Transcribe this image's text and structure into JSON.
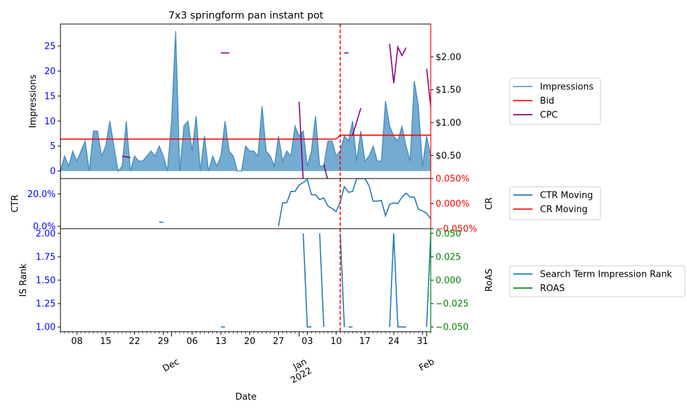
{
  "chart_data": {
    "type": "line",
    "title": "7x3 springform pan instant pot",
    "xlabel": "Date",
    "x_range": [
      "2021-11-04",
      "2022-02-02"
    ],
    "x_minor_ticks": [
      "08",
      "15",
      "22",
      "29",
      "06",
      "13",
      "20",
      "27",
      "03",
      "10",
      "17",
      "24",
      "31"
    ],
    "x_month_labels": [
      "Dec",
      "Jan\n2022",
      "Feb"
    ],
    "event_marker_date": "2022-01-11",
    "panels": [
      {
        "name": "impressions-panel",
        "ylabel": "Impressions",
        "ylim": [
          -1.5,
          29.4
        ],
        "yticks": [
          "0",
          "5",
          "10",
          "15",
          "20",
          "25"
        ],
        "y2lim": [
          0.15,
          2.5
        ],
        "y2ticks": [
          "$0.50",
          "$1.00",
          "$1.50",
          "$2.00"
        ],
        "series": [
          {
            "name": "Impressions",
            "color": "#1f77b4",
            "fill": true,
            "values": [
              0,
              3,
              1,
              4,
              2,
              4,
              6,
              0,
              8,
              8,
              3,
              5,
              10,
              5,
              0,
              1,
              10,
              0,
              3,
              2,
              2,
              3,
              4,
              3,
              5,
              3,
              0,
              10,
              28,
              0,
              9,
              10,
              4,
              11,
              0,
              7,
              0,
              3,
              1,
              3,
              10,
              4,
              3,
              0,
              0,
              5,
              4,
              4,
              3,
              13,
              4,
              3,
              1,
              7,
              2,
              4,
              3,
              9,
              7,
              8,
              1,
              4,
              11,
              1,
              1,
              6,
              6,
              3,
              4,
              7,
              6,
              10,
              2,
              8,
              2,
              3,
              5,
              2,
              2,
              14,
              9,
              7,
              6,
              9,
              5,
              2,
              18,
              13,
              1,
              7,
              3
            ]
          },
          {
            "name": "Bid",
            "color": "#ff0000",
            "axis": "right",
            "segments": [
              {
                "from": "2021-11-04",
                "to": "2022-01-10",
                "value": 0.75
              },
              {
                "from": "2022-01-11",
                "to": "2022-02-02",
                "value": 0.81
              }
            ]
          },
          {
            "name": "CPC",
            "color": "#800080",
            "axis": "right",
            "segments": [
              [
                [
                  "2021-11-19",
                  0.49
                ],
                [
                  "2021-11-20",
                  0.48
                ],
                [
                  "2021-11-21",
                  0.47
                ]
              ],
              [
                [
                  "2021-12-13",
                  2.06
                ],
                [
                  "2021-12-14",
                  2.06
                ],
                [
                  "2021-12-15",
                  2.06
                ]
              ],
              [
                [
                  "2022-01-01",
                  1.32
                ],
                [
                  "2022-01-02",
                  0.12
                ],
                [
                  "2022-01-03",
                  0.12
                ],
                [
                  "2022-01-04",
                  0.12
                ],
                [
                  "2022-01-05",
                  0.12
                ]
              ],
              [
                [
                  "2022-01-07",
                  0.37
                ],
                [
                  "2022-01-08",
                  0.12
                ]
              ],
              [
                [
                  "2022-01-12",
                  2.06
                ],
                [
                  "2022-01-13",
                  2.06
                ]
              ],
              [
                [
                  "2022-01-14",
                  0.81
                ],
                [
                  "2022-01-15",
                  1.01
                ],
                [
                  "2022-01-16",
                  1.22
                ]
              ],
              [
                [
                  "2022-01-23",
                  2.2
                ],
                [
                  "2022-01-24",
                  1.6
                ],
                [
                  "2022-01-25",
                  2.15
                ],
                [
                  "2022-01-26",
                  2.02
                ],
                [
                  "2022-01-27",
                  2.14
                ]
              ],
              [
                [
                  "2022-02-01",
                  1.82
                ],
                [
                  "2022-02-02",
                  1.24
                ]
              ]
            ]
          }
        ]
      },
      {
        "name": "ctr-panel",
        "ylabel": "CTR",
        "ylim": [
          -0.015,
          0.295
        ],
        "yticks": [
          "0.0%",
          "20.0%"
        ],
        "y2label": "CR",
        "y2lim": [
          -0.05,
          0.05
        ],
        "y2ticks": [
          "−0.050%",
          "0.000%",
          "0.050%"
        ],
        "series": [
          {
            "name": "CTR Moving",
            "color": "#1f77b4",
            "segments": [
              [
                [
                  "2021-11-28",
                  0.025
                ],
                [
                  "2021-11-29",
                  0.025
                ]
              ],
              [
                [
                  "2021-12-27",
                  0.0
                ],
                [
                  "2021-12-28",
                  0.145
                ],
                [
                  "2021-12-29",
                  0.145
                ],
                [
                  "2021-12-30",
                  0.215
                ],
                [
                  "2021-12-31",
                  0.215
                ],
                [
                  "2022-01-01",
                  0.255
                ],
                [
                  "2022-01-02",
                  0.27
                ],
                [
                  "2022-01-03",
                  0.29
                ],
                [
                  "2022-01-04",
                  0.195
                ],
                [
                  "2022-01-05",
                  0.195
                ],
                [
                  "2022-01-06",
                  0.165
                ],
                [
                  "2022-01-07",
                  0.175
                ],
                [
                  "2022-01-08",
                  0.125
                ],
                [
                  "2022-01-09",
                  0.11
                ],
                [
                  "2022-01-10",
                  0.09
                ],
                [
                  "2022-01-11",
                  0.15
                ],
                [
                  "2022-01-12",
                  0.245
                ],
                [
                  "2022-01-13",
                  0.21
                ],
                [
                  "2022-01-14",
                  0.215
                ],
                [
                  "2022-01-15",
                  0.295
                ],
                [
                  "2022-01-16",
                  0.295
                ],
                [
                  "2022-01-17",
                  0.295
                ],
                [
                  "2022-01-18",
                  0.25
                ],
                [
                  "2022-01-19",
                  0.155
                ],
                [
                  "2022-01-20",
                  0.155
                ],
                [
                  "2022-01-21",
                  0.16
                ],
                [
                  "2022-01-22",
                  0.065
                ],
                [
                  "2022-01-23",
                  0.135
                ],
                [
                  "2022-01-24",
                  0.145
                ],
                [
                  "2022-01-25",
                  0.14
                ],
                [
                  "2022-01-26",
                  0.18
                ],
                [
                  "2022-01-27",
                  0.205
                ],
                [
                  "2022-01-28",
                  0.18
                ],
                [
                  "2022-01-29",
                  0.18
                ],
                [
                  "2022-01-30",
                  0.105
                ],
                [
                  "2022-01-31",
                  0.095
                ],
                [
                  "2022-02-01",
                  0.08
                ],
                [
                  "2022-02-02",
                  0.045
                ],
                [
                  "2022-02-03",
                  0.045
                ],
                [
                  "2022-02-04",
                  0.095
                ]
              ]
            ]
          },
          {
            "name": "CR Moving",
            "color": "#ff0000",
            "segments": []
          }
        ]
      },
      {
        "name": "rank-panel",
        "ylabel": "IS Rank",
        "ylim": [
          0.95,
          2.05
        ],
        "yticks": [
          "1.00",
          "1.25",
          "1.50",
          "1.75",
          "2.00"
        ],
        "y2label": "RoAS",
        "y2lim": [
          -0.055,
          0.055
        ],
        "y2ticks": [
          "−0.050",
          "−0.025",
          "0.000",
          "0.025",
          "0.050"
        ],
        "series": [
          {
            "name": "Search Term Impression Rank",
            "color": "#1f77b4",
            "segments": [
              [
                [
                  "2021-12-13",
                  1.0
                ],
                [
                  "2021-12-14",
                  1.0
                ]
              ],
              [
                [
                  "2022-01-02",
                  2.0
                ],
                [
                  "2022-01-03",
                  1.0
                ],
                [
                  "2022-01-04",
                  1.0
                ]
              ],
              [
                [
                  "2022-01-06",
                  2.0
                ],
                [
                  "2022-01-07",
                  1.0
                ]
              ],
              [
                [
                  "2022-01-11",
                  2.0
                ],
                [
                  "2022-01-12",
                  1.0
                ]
              ],
              [
                [
                  "2022-01-13",
                  1.0
                ],
                [
                  "2022-01-14",
                  1.0
                ]
              ],
              [
                [
                  "2022-01-23",
                  1.0
                ],
                [
                  "2022-01-24",
                  2.0
                ],
                [
                  "2022-01-25",
                  1.0
                ],
                [
                  "2022-01-26",
                  1.0
                ],
                [
                  "2022-01-27",
                  1.0
                ]
              ],
              [
                [
                  "2022-02-01",
                  1.0
                ],
                [
                  "2022-02-02",
                  2.0
                ]
              ]
            ]
          },
          {
            "name": "ROAS",
            "color": "#008000",
            "segments": []
          }
        ]
      }
    ],
    "legend_placement": "right",
    "legends": [
      [
        "Impressions",
        "Bid",
        "CPC"
      ],
      [
        "CTR Moving",
        "CR Moving"
      ],
      [
        "Search Term Impression Rank",
        "ROAS"
      ]
    ]
  }
}
